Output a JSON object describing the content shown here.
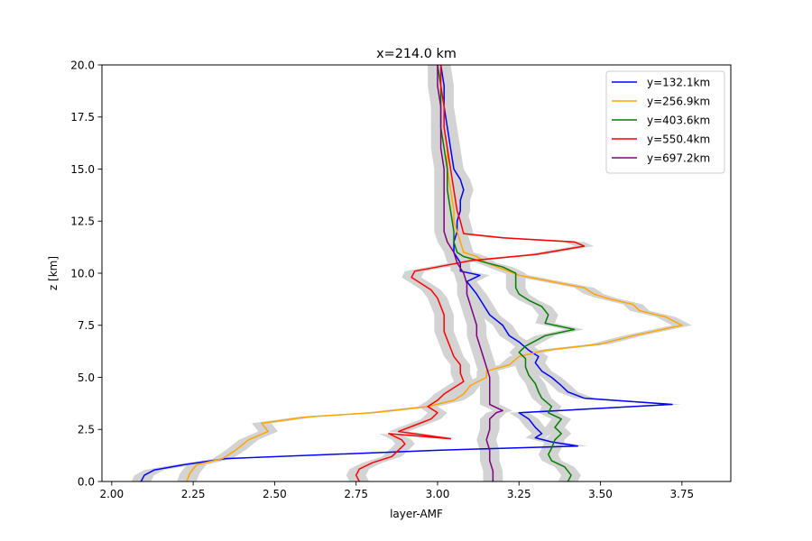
{
  "chart_data": {
    "type": "line",
    "title": "x=214.0 km",
    "xlabel": "layer-AMF",
    "ylabel": "z [km]",
    "xlim": [
      1.97,
      3.9
    ],
    "ylim": [
      0,
      20
    ],
    "xticks": [
      "2.00",
      "2.25",
      "2.50",
      "2.75",
      "3.00",
      "3.25",
      "3.50",
      "3.75"
    ],
    "xtick_values": [
      2.0,
      2.25,
      2.5,
      2.75,
      3.0,
      3.25,
      3.5,
      3.75
    ],
    "yticks": [
      "0.0",
      "2.5",
      "5.0",
      "7.5",
      "10.0",
      "12.5",
      "15.0",
      "17.5",
      "20.0"
    ],
    "ytick_values": [
      0,
      2.5,
      5,
      7.5,
      10,
      12.5,
      15,
      17.5,
      20
    ],
    "grid": false,
    "legend_position": "top-right",
    "uncertainty_band": {
      "color": "#d3d3d3",
      "half_width": 0.03
    },
    "series": [
      {
        "name": "y=132.1km",
        "color": "#0000ff",
        "points": [
          [
            2.09,
            0
          ],
          [
            2.1,
            0.3
          ],
          [
            2.13,
            0.55
          ],
          [
            2.22,
            0.8
          ],
          [
            2.35,
            1.1
          ],
          [
            3.0,
            1.5
          ],
          [
            3.43,
            1.7
          ],
          [
            3.35,
            1.9
          ],
          [
            3.3,
            2.1
          ],
          [
            3.32,
            2.3
          ],
          [
            3.3,
            2.6
          ],
          [
            3.28,
            3.0
          ],
          [
            3.25,
            3.3
          ],
          [
            3.72,
            3.7
          ],
          [
            3.45,
            4.0
          ],
          [
            3.4,
            4.3
          ],
          [
            3.38,
            4.6
          ],
          [
            3.35,
            5.0
          ],
          [
            3.32,
            5.3
          ],
          [
            3.3,
            5.7
          ],
          [
            3.31,
            6.0
          ],
          [
            3.28,
            6.3
          ],
          [
            3.25,
            6.7
          ],
          [
            3.22,
            7.0
          ],
          [
            3.2,
            7.5
          ],
          [
            3.16,
            8.0
          ],
          [
            3.14,
            8.5
          ],
          [
            3.12,
            9.0
          ],
          [
            3.09,
            9.6
          ],
          [
            3.13,
            9.9
          ],
          [
            3.07,
            10.1
          ],
          [
            3.07,
            10.5
          ],
          [
            3.05,
            11.0
          ],
          [
            3.05,
            11.5
          ],
          [
            3.06,
            12.0
          ],
          [
            3.06,
            12.5
          ],
          [
            3.07,
            13.0
          ],
          [
            3.07,
            13.5
          ],
          [
            3.08,
            14.0
          ],
          [
            3.07,
            14.5
          ],
          [
            3.05,
            15.0
          ],
          [
            3.04,
            16.0
          ],
          [
            3.03,
            17.0
          ],
          [
            3.02,
            18.0
          ],
          [
            3.02,
            19.0
          ],
          [
            3.01,
            20.0
          ]
        ]
      },
      {
        "name": "y=256.9km",
        "color": "#ffa500",
        "points": [
          [
            2.23,
            0
          ],
          [
            2.24,
            0.4
          ],
          [
            2.26,
            0.8
          ],
          [
            2.34,
            1.1
          ],
          [
            2.38,
            1.5
          ],
          [
            2.42,
            2.0
          ],
          [
            2.48,
            2.4
          ],
          [
            2.46,
            2.8
          ],
          [
            2.6,
            3.1
          ],
          [
            2.8,
            3.3
          ],
          [
            2.97,
            3.6
          ],
          [
            3.05,
            3.9
          ],
          [
            3.08,
            4.2
          ],
          [
            3.1,
            4.6
          ],
          [
            3.15,
            5.0
          ],
          [
            3.15,
            5.3
          ],
          [
            3.22,
            5.6
          ],
          [
            3.25,
            6.0
          ],
          [
            3.33,
            6.3
          ],
          [
            3.5,
            6.6
          ],
          [
            3.55,
            6.8
          ],
          [
            3.6,
            7.0
          ],
          [
            3.75,
            7.5
          ],
          [
            3.7,
            7.9
          ],
          [
            3.62,
            8.2
          ],
          [
            3.6,
            8.5
          ],
          [
            3.52,
            8.8
          ],
          [
            3.48,
            9.0
          ],
          [
            3.45,
            9.3
          ],
          [
            3.35,
            9.6
          ],
          [
            3.25,
            9.9
          ],
          [
            3.2,
            10.2
          ],
          [
            3.15,
            10.5
          ],
          [
            3.12,
            10.8
          ],
          [
            3.08,
            11.0
          ],
          [
            3.07,
            11.5
          ],
          [
            3.06,
            12.0
          ],
          [
            3.05,
            12.5
          ],
          [
            3.05,
            13.0
          ],
          [
            3.04,
            14.0
          ],
          [
            3.03,
            15.0
          ],
          [
            3.03,
            16.0
          ],
          [
            3.02,
            17.0
          ],
          [
            3.02,
            18.0
          ],
          [
            3.01,
            19.0
          ],
          [
            3.0,
            20.0
          ]
        ]
      },
      {
        "name": "y=403.6km",
        "color": "#008000",
        "points": [
          [
            3.4,
            0
          ],
          [
            3.41,
            0.3
          ],
          [
            3.39,
            0.7
          ],
          [
            3.35,
            1.0
          ],
          [
            3.34,
            1.3
          ],
          [
            3.35,
            1.6
          ],
          [
            3.36,
            2.0
          ],
          [
            3.38,
            2.3
          ],
          [
            3.36,
            2.6
          ],
          [
            3.38,
            3.0
          ],
          [
            3.34,
            3.3
          ],
          [
            3.35,
            3.6
          ],
          [
            3.32,
            4.0
          ],
          [
            3.31,
            4.3
          ],
          [
            3.3,
            4.7
          ],
          [
            3.28,
            5.1
          ],
          [
            3.27,
            5.5
          ],
          [
            3.27,
            5.9
          ],
          [
            3.25,
            6.2
          ],
          [
            3.27,
            6.5
          ],
          [
            3.33,
            7.0
          ],
          [
            3.42,
            7.3
          ],
          [
            3.33,
            7.6
          ],
          [
            3.34,
            8.0
          ],
          [
            3.32,
            8.4
          ],
          [
            3.28,
            8.7
          ],
          [
            3.25,
            9.0
          ],
          [
            3.24,
            9.3
          ],
          [
            3.24,
            9.6
          ],
          [
            3.24,
            10.0
          ],
          [
            3.2,
            10.3
          ],
          [
            3.15,
            10.5
          ],
          [
            3.08,
            10.8
          ],
          [
            3.06,
            11.0
          ],
          [
            3.05,
            11.5
          ],
          [
            3.05,
            12.0
          ],
          [
            3.04,
            13.0
          ],
          [
            3.03,
            14.0
          ],
          [
            3.03,
            15.0
          ],
          [
            3.02,
            16.0
          ],
          [
            3.01,
            17.0
          ],
          [
            3.01,
            18.0
          ],
          [
            3.01,
            19.0
          ],
          [
            3.0,
            20.0
          ]
        ]
      },
      {
        "name": "y=550.4km",
        "color": "#ff0000",
        "points": [
          [
            2.76,
            0
          ],
          [
            2.75,
            0.3
          ],
          [
            2.76,
            0.6
          ],
          [
            2.8,
            0.9
          ],
          [
            2.86,
            1.2
          ],
          [
            2.88,
            1.5
          ],
          [
            2.9,
            1.8
          ],
          [
            2.89,
            2.0
          ],
          [
            2.85,
            2.3
          ],
          [
            3.04,
            2.05
          ],
          [
            2.88,
            2.4
          ],
          [
            2.93,
            2.7
          ],
          [
            2.98,
            3.0
          ],
          [
            3.0,
            3.3
          ],
          [
            2.97,
            3.6
          ],
          [
            3.0,
            3.9
          ],
          [
            3.02,
            4.2
          ],
          [
            3.05,
            4.5
          ],
          [
            3.08,
            4.8
          ],
          [
            3.07,
            5.2
          ],
          [
            3.07,
            5.6
          ],
          [
            3.05,
            6.0
          ],
          [
            3.04,
            6.4
          ],
          [
            3.03,
            6.8
          ],
          [
            3.02,
            7.2
          ],
          [
            3.02,
            7.6
          ],
          [
            3.02,
            8.0
          ],
          [
            3.01,
            8.4
          ],
          [
            3.0,
            8.8
          ],
          [
            2.98,
            9.2
          ],
          [
            2.95,
            9.5
          ],
          [
            2.92,
            9.8
          ],
          [
            2.93,
            10.1
          ],
          [
            3.0,
            10.3
          ],
          [
            3.1,
            10.6
          ],
          [
            3.3,
            10.9
          ],
          [
            3.45,
            11.3
          ],
          [
            3.42,
            11.5
          ],
          [
            3.2,
            11.7
          ],
          [
            3.08,
            11.9
          ],
          [
            3.07,
            12.5
          ],
          [
            3.06,
            13.0
          ],
          [
            3.05,
            14.0
          ],
          [
            3.04,
            15.0
          ],
          [
            3.03,
            16.0
          ],
          [
            3.02,
            17.0
          ],
          [
            3.02,
            18.0
          ],
          [
            3.01,
            19.0
          ],
          [
            3.01,
            20.0
          ]
        ]
      },
      {
        "name": "y=697.2km",
        "color": "#800080",
        "points": [
          [
            3.17,
            0
          ],
          [
            3.17,
            0.5
          ],
          [
            3.16,
            1.0
          ],
          [
            3.16,
            1.5
          ],
          [
            3.15,
            2.0
          ],
          [
            3.16,
            2.5
          ],
          [
            3.16,
            3.0
          ],
          [
            3.18,
            3.3
          ],
          [
            3.2,
            3.4
          ],
          [
            3.16,
            3.7
          ],
          [
            3.16,
            4.0
          ],
          [
            3.16,
            4.5
          ],
          [
            3.16,
            5.0
          ],
          [
            3.15,
            5.5
          ],
          [
            3.14,
            6.0
          ],
          [
            3.13,
            6.5
          ],
          [
            3.12,
            7.0
          ],
          [
            3.12,
            7.5
          ],
          [
            3.11,
            8.0
          ],
          [
            3.1,
            8.5
          ],
          [
            3.09,
            9.0
          ],
          [
            3.09,
            9.5
          ],
          [
            3.08,
            10.0
          ],
          [
            3.06,
            10.5
          ],
          [
            3.05,
            11.0
          ],
          [
            3.03,
            11.5
          ],
          [
            3.02,
            12.0
          ],
          [
            3.02,
            12.5
          ],
          [
            3.02,
            13.0
          ],
          [
            3.02,
            13.5
          ],
          [
            3.02,
            14.0
          ],
          [
            3.02,
            15.0
          ],
          [
            3.01,
            16.0
          ],
          [
            3.01,
            17.0
          ],
          [
            3.01,
            18.0
          ],
          [
            3.0,
            19.0
          ],
          [
            3.0,
            20.0
          ]
        ]
      }
    ]
  }
}
